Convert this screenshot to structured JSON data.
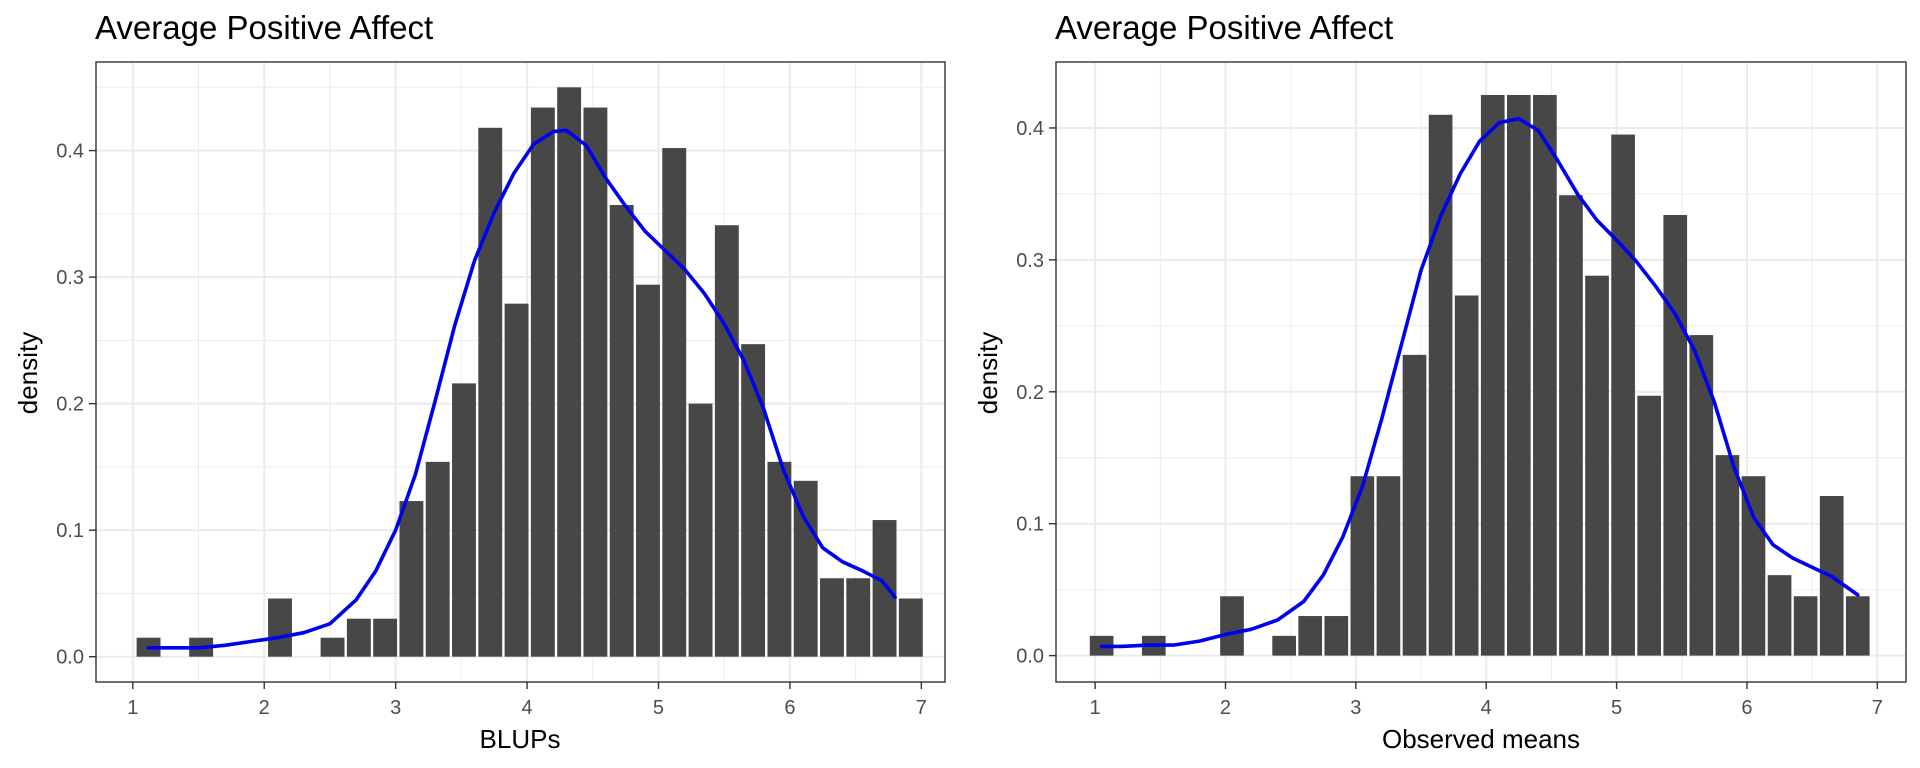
{
  "colors": {
    "bar": "#474747",
    "density": "#0000ee",
    "background": "#ffffff"
  },
  "chart_data": [
    {
      "type": "bar",
      "title": "Average Positive Affect",
      "xlabel": "BLUPs",
      "ylabel": "density",
      "xlim": [
        0.72,
        7.18
      ],
      "ylim": [
        -0.02,
        0.47
      ],
      "xticks": [
        1,
        2,
        3,
        4,
        5,
        6,
        7
      ],
      "yticks": [
        0.0,
        0.1,
        0.2,
        0.3,
        0.4
      ],
      "ytick_labels": [
        "0.0",
        "0.1",
        "0.2",
        "0.3",
        "0.4"
      ],
      "grid": true,
      "bin_width": 0.2,
      "bin_centers": [
        1.12,
        1.52,
        2.12,
        2.52,
        2.72,
        2.92,
        3.12,
        3.32,
        3.52,
        3.72,
        3.92,
        4.12,
        4.32,
        4.52,
        4.72,
        4.92,
        5.12,
        5.32,
        5.52,
        5.72,
        5.92,
        6.12,
        6.32,
        6.52,
        6.72,
        6.92
      ],
      "bin_values": [
        0.015,
        0.015,
        0.046,
        0.015,
        0.03,
        0.03,
        0.123,
        0.154,
        0.216,
        0.418,
        0.279,
        0.434,
        0.45,
        0.434,
        0.357,
        0.294,
        0.402,
        0.2,
        0.341,
        0.247,
        0.154,
        0.139,
        0.062,
        0.062,
        0.108,
        0.046
      ],
      "density_x": [
        1.12,
        1.3,
        1.5,
        1.7,
        1.9,
        2.1,
        2.3,
        2.5,
        2.7,
        2.85,
        3.0,
        3.15,
        3.3,
        3.45,
        3.6,
        3.75,
        3.9,
        4.05,
        4.2,
        4.3,
        4.45,
        4.6,
        4.75,
        4.9,
        5.05,
        5.2,
        5.35,
        5.5,
        5.65,
        5.8,
        5.95,
        6.1,
        6.25,
        6.4,
        6.55,
        6.7,
        6.8
      ],
      "density_y": [
        0.007,
        0.007,
        0.007,
        0.009,
        0.012,
        0.015,
        0.019,
        0.026,
        0.045,
        0.068,
        0.1,
        0.144,
        0.202,
        0.262,
        0.313,
        0.351,
        0.382,
        0.405,
        0.415,
        0.416,
        0.404,
        0.378,
        0.356,
        0.336,
        0.321,
        0.306,
        0.287,
        0.263,
        0.234,
        0.196,
        0.148,
        0.111,
        0.086,
        0.075,
        0.068,
        0.06,
        0.047
      ]
    },
    {
      "type": "bar",
      "title": "Average Positive Affect",
      "xlabel": "Observed means",
      "ylabel": "density",
      "xlim": [
        0.7,
        7.22
      ],
      "ylim": [
        -0.02,
        0.45
      ],
      "xticks": [
        1,
        2,
        3,
        4,
        5,
        6,
        7
      ],
      "yticks": [
        0.0,
        0.1,
        0.2,
        0.3,
        0.4
      ],
      "ytick_labels": [
        "0.0",
        "0.1",
        "0.2",
        "0.3",
        "0.4"
      ],
      "grid": true,
      "bin_width": 0.2,
      "bin_centers": [
        1.05,
        1.45,
        2.05,
        2.45,
        2.65,
        2.85,
        3.05,
        3.25,
        3.45,
        3.65,
        3.85,
        4.05,
        4.25,
        4.45,
        4.65,
        4.85,
        5.05,
        5.25,
        5.45,
        5.65,
        5.85,
        6.05,
        6.25,
        6.45,
        6.65,
        6.85
      ],
      "bin_values": [
        0.015,
        0.015,
        0.045,
        0.015,
        0.03,
        0.03,
        0.136,
        0.136,
        0.228,
        0.41,
        0.273,
        0.425,
        0.425,
        0.425,
        0.349,
        0.288,
        0.395,
        0.197,
        0.334,
        0.243,
        0.152,
        0.136,
        0.061,
        0.045,
        0.121,
        0.045
      ],
      "density_x": [
        1.05,
        1.2,
        1.4,
        1.6,
        1.8,
        2.0,
        2.2,
        2.4,
        2.6,
        2.75,
        2.9,
        3.05,
        3.2,
        3.35,
        3.5,
        3.65,
        3.8,
        3.95,
        4.1,
        4.25,
        4.4,
        4.55,
        4.7,
        4.85,
        5.0,
        5.15,
        5.3,
        5.45,
        5.6,
        5.75,
        5.9,
        6.05,
        6.2,
        6.35,
        6.5,
        6.65,
        6.85
      ],
      "density_y": [
        0.007,
        0.007,
        0.008,
        0.008,
        0.011,
        0.016,
        0.02,
        0.027,
        0.041,
        0.061,
        0.09,
        0.128,
        0.18,
        0.236,
        0.292,
        0.333,
        0.365,
        0.39,
        0.404,
        0.407,
        0.398,
        0.375,
        0.35,
        0.33,
        0.315,
        0.299,
        0.28,
        0.259,
        0.231,
        0.192,
        0.143,
        0.105,
        0.084,
        0.074,
        0.067,
        0.06,
        0.046
      ]
    }
  ]
}
